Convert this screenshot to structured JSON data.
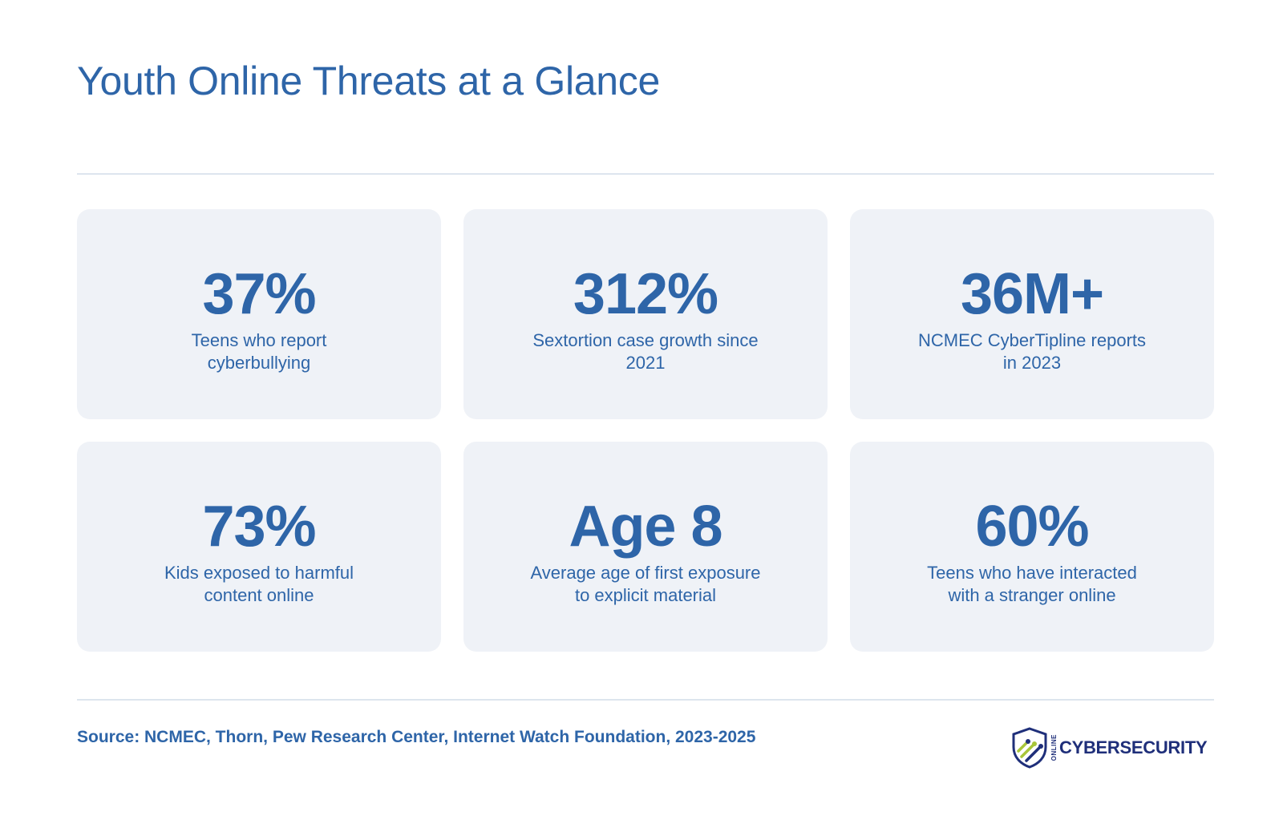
{
  "title": "Youth Online Threats at a Glance",
  "stats": [
    {
      "value": "37%",
      "label": "Teens who report cyberbullying"
    },
    {
      "value": "312%",
      "label": "Sextortion case growth since 2021"
    },
    {
      "value": "36M+",
      "label": "NCMEC CyberTipline reports in 2023"
    },
    {
      "value": "73%",
      "label": "Kids exposed to harmful content online"
    },
    {
      "value": "Age 8",
      "label": "Average age of first exposure to explicit material"
    },
    {
      "value": "60%",
      "label": "Teens who have interacted with a stranger online"
    }
  ],
  "source": "Source: NCMEC, Thorn, Pew Research Center, Internet Watch Foundation, 2023-2025",
  "logo": {
    "small_text": "ONLINE",
    "text": "CYBERSECURITY",
    "icon": "shield-logo-icon"
  },
  "colors": {
    "accent": "#2e65a8",
    "card_background": "#eff2f7",
    "divider": "#dde5ee",
    "logo_navy": "#1f2f7a",
    "logo_green": "#a8c63a"
  }
}
